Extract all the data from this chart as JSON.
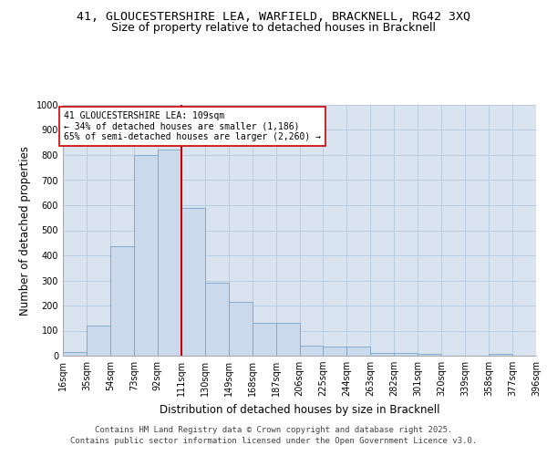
{
  "title_line1": "41, GLOUCESTERSHIRE LEA, WARFIELD, BRACKNELL, RG42 3XQ",
  "title_line2": "Size of property relative to detached houses in Bracknell",
  "xlabel": "Distribution of detached houses by size in Bracknell",
  "ylabel": "Number of detached properties",
  "bar_color": "#cad9eb",
  "bar_edge_color": "#7aa3c8",
  "grid_color": "#b8cce0",
  "background_color": "#d9e4f0",
  "vline_color": "#cc0000",
  "vline_x": 111,
  "annotation_text": "41 GLOUCESTERSHIRE LEA: 109sqm\n← 34% of detached houses are smaller (1,186)\n65% of semi-detached houses are larger (2,260) →",
  "annotation_box_facecolor": "#ffffff",
  "annotation_box_edge": "#cc0000",
  "bins": [
    16,
    35,
    54,
    73,
    92,
    111,
    130,
    149,
    168,
    187,
    206,
    225,
    244,
    263,
    282,
    301,
    320,
    339,
    358,
    377,
    396
  ],
  "bin_labels": [
    "16sqm",
    "35sqm",
    "54sqm",
    "73sqm",
    "92sqm",
    "111sqm",
    "130sqm",
    "149sqm",
    "168sqm",
    "187sqm",
    "206sqm",
    "225sqm",
    "244sqm",
    "263sqm",
    "282sqm",
    "301sqm",
    "320sqm",
    "339sqm",
    "358sqm",
    "377sqm",
    "396sqm"
  ],
  "bar_heights": [
    15,
    120,
    435,
    800,
    820,
    590,
    290,
    215,
    130,
    130,
    40,
    35,
    35,
    12,
    10,
    8,
    0,
    0,
    7,
    0,
    5
  ],
  "ylim": [
    0,
    1000
  ],
  "yticks": [
    0,
    100,
    200,
    300,
    400,
    500,
    600,
    700,
    800,
    900,
    1000
  ],
  "footer_text": "Contains HM Land Registry data © Crown copyright and database right 2025.\nContains public sector information licensed under the Open Government Licence v3.0.",
  "title_fontsize": 9.5,
  "subtitle_fontsize": 9,
  "axis_label_fontsize": 8.5,
  "tick_fontsize": 7,
  "footer_fontsize": 6.5,
  "annotation_fontsize": 7
}
